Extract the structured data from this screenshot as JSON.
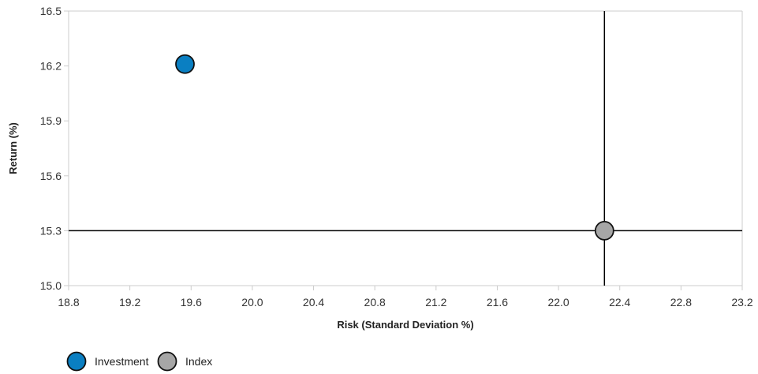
{
  "chart_data": {
    "type": "scatter",
    "xlabel": "Risk (Standard Deviation %)",
    "ylabel": "Return (%)",
    "xlim": [
      18.8,
      23.2
    ],
    "ylim": [
      15.0,
      16.5
    ],
    "xticks": [
      "18.8",
      "19.2",
      "19.6",
      "20.0",
      "20.4",
      "20.8",
      "21.2",
      "21.6",
      "22.0",
      "22.4",
      "22.8",
      "23.2"
    ],
    "yticks": [
      "15.0",
      "15.3",
      "15.6",
      "15.9",
      "16.2",
      "16.5"
    ],
    "series": [
      {
        "name": "Investment",
        "color": "#0a7fc2",
        "x": 19.56,
        "y": 16.21
      },
      {
        "name": "Index",
        "color": "#a6a6a6",
        "x": 22.3,
        "y": 15.3
      }
    ],
    "crosshair": {
      "x": 22.3,
      "y": 15.3
    },
    "legend_position": "bottom-left",
    "grid": false
  }
}
